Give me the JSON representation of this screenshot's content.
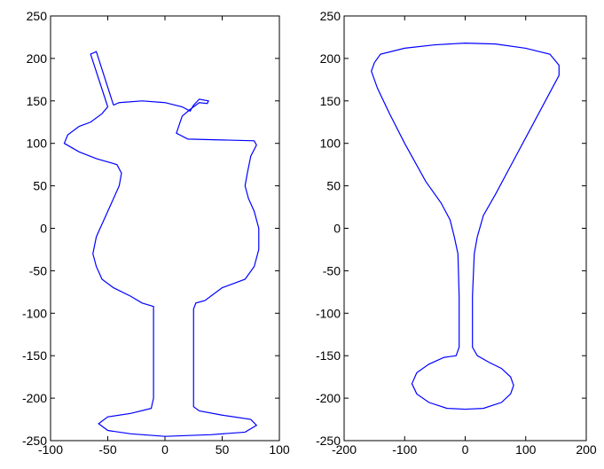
{
  "chart_data": [
    {
      "type": "line",
      "color": "#0000ff",
      "x": [
        -45,
        -40,
        -20,
        0,
        15,
        22,
        25,
        30,
        38,
        37,
        30,
        22,
        15,
        10,
        20,
        50,
        78,
        80,
        75,
        72,
        70,
        73,
        78,
        82,
        82,
        78,
        70,
        50,
        40,
        35,
        27,
        25,
        25,
        25,
        30,
        50,
        75,
        80,
        70,
        40,
        0,
        -30,
        -50,
        -58,
        -50,
        -30,
        -12,
        -10,
        -10,
        -10,
        -20,
        -30,
        -45,
        -55,
        -60,
        -63,
        -60,
        -55,
        -50,
        -45,
        -40,
        -38,
        -42,
        -60,
        -75,
        -88,
        -85,
        -75,
        -65,
        -55,
        -50,
        -65,
        -60,
        -45
      ],
      "y": [
        145,
        148,
        150,
        148,
        143,
        138,
        145,
        152,
        150,
        147,
        148,
        140,
        132,
        112,
        105,
        104,
        103,
        98,
        85,
        65,
        50,
        35,
        20,
        0,
        -25,
        -45,
        -60,
        -70,
        -80,
        -85,
        -88,
        -95,
        -150,
        -210,
        -215,
        -220,
        -225,
        -232,
        -240,
        -243,
        -245,
        -242,
        -238,
        -230,
        -222,
        -218,
        -212,
        -200,
        -150,
        -92,
        -88,
        -80,
        -70,
        -60,
        -45,
        -30,
        -10,
        5,
        20,
        35,
        50,
        65,
        75,
        82,
        90,
        100,
        110,
        120,
        125,
        135,
        143,
        205,
        208,
        145
      ],
      "xlim": [
        -100,
        100
      ],
      "xticks": [
        -100,
        -50,
        0,
        50,
        100
      ],
      "ylim": [
        -250,
        250
      ],
      "yticks": [
        -250,
        -200,
        -150,
        -100,
        -50,
        0,
        50,
        100,
        150,
        200,
        250
      ]
    },
    {
      "type": "line",
      "color": "#0000ff",
      "x": [
        -150,
        -140,
        -100,
        -50,
        0,
        50,
        100,
        140,
        155,
        155,
        140,
        110,
        80,
        50,
        30,
        20,
        15,
        12,
        12,
        20,
        40,
        60,
        75,
        80,
        75,
        60,
        30,
        0,
        -30,
        -60,
        -80,
        -88,
        -80,
        -60,
        -35,
        -15,
        -10,
        -10,
        -12,
        -18,
        -25,
        -40,
        -65,
        -100,
        -125,
        -145,
        -155,
        -150
      ],
      "y": [
        195,
        205,
        212,
        216,
        218,
        217,
        212,
        205,
        192,
        180,
        160,
        120,
        80,
        40,
        15,
        -10,
        -30,
        -80,
        -140,
        -150,
        -158,
        -165,
        -175,
        -185,
        -195,
        -205,
        -212,
        -213,
        -212,
        -205,
        -195,
        -183,
        -170,
        -160,
        -152,
        -150,
        -140,
        -80,
        -30,
        -10,
        10,
        30,
        55,
        100,
        135,
        165,
        185,
        195
      ],
      "xlim": [
        -200,
        200
      ],
      "xticks": [
        -200,
        -100,
        0,
        100,
        200
      ],
      "ylim": [
        -250,
        250
      ],
      "yticks": [
        -250,
        -200,
        -150,
        -100,
        -50,
        0,
        50,
        100,
        150,
        200,
        250
      ]
    }
  ]
}
